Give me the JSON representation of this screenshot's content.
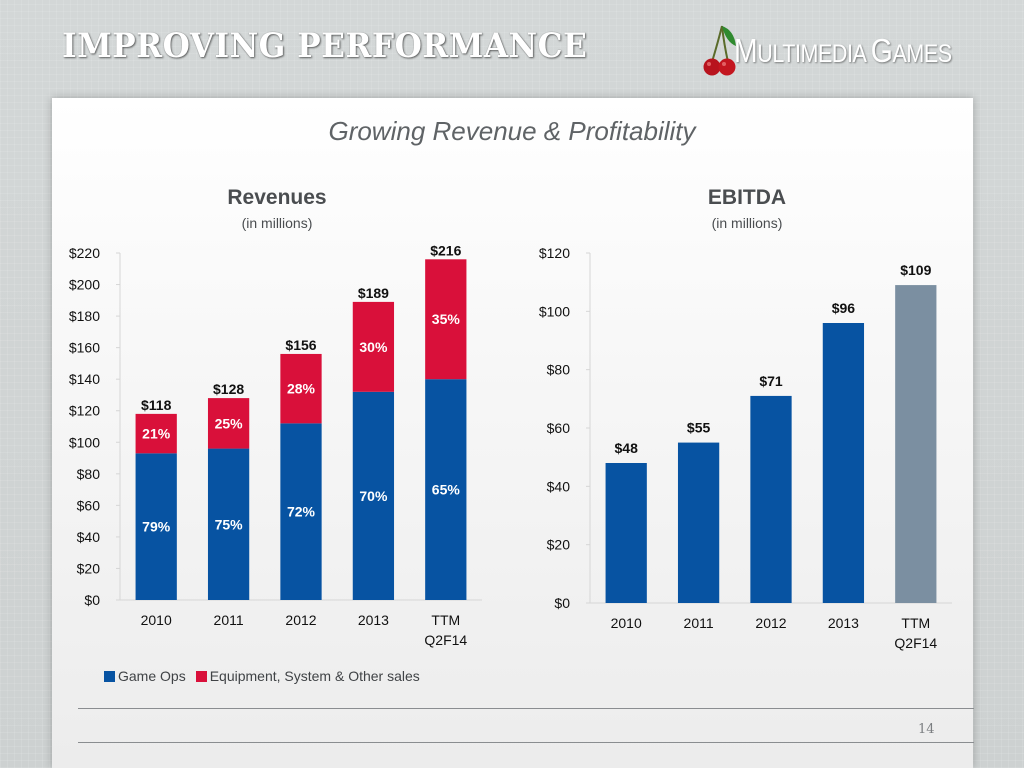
{
  "slide": {
    "title": "IMPROVING PERFORMANCE",
    "logo_text_big_m": "M",
    "logo_text_rest": "ULTIMEDIA ",
    "logo_text_big_g": "G",
    "logo_text_rest2": "AMES",
    "subtitle": "Growing Revenue & Profitability",
    "page_number": "14",
    "colors": {
      "game_ops": "#0753a2",
      "equipment": "#d9103a",
      "ttm_ebitda": "#7b8fa1"
    }
  },
  "chart_data": [
    {
      "type": "bar",
      "stacked": true,
      "title": "Revenues",
      "subtitle": "(in millions)",
      "categories": [
        "2010",
        "2011",
        "2012",
        "2013",
        "TTM\nQ2F14"
      ],
      "series": [
        {
          "name": "Game Ops",
          "values": [
            93,
            96,
            112,
            132,
            140
          ],
          "percent_labels": [
            "79%",
            "75%",
            "72%",
            "70%",
            "65%"
          ]
        },
        {
          "name": "Equipment, System & Other sales",
          "values": [
            25,
            32,
            44,
            57,
            76
          ],
          "percent_labels": [
            "21%",
            "25%",
            "28%",
            "30%",
            "35%"
          ]
        }
      ],
      "totals": [
        118,
        128,
        156,
        189,
        216
      ],
      "total_labels": [
        "$118",
        "$128",
        "$156",
        "$189",
        "$216"
      ],
      "ylim": [
        0,
        220
      ],
      "yticks": [
        0,
        20,
        40,
        60,
        80,
        100,
        120,
        140,
        160,
        180,
        200,
        220
      ],
      "ytick_labels": [
        "$0",
        "$20",
        "$40",
        "$60",
        "$80",
        "$100",
        "$120",
        "$140",
        "$160",
        "$180",
        "$200",
        "$220"
      ],
      "xlabel": "",
      "ylabel": "",
      "grid": false,
      "legend": [
        "Game Ops",
        "Equipment, System & Other sales"
      ],
      "legend_placement": "bottom"
    },
    {
      "type": "bar",
      "title": "EBITDA",
      "subtitle": "(in millions)",
      "categories": [
        "2010",
        "2011",
        "2012",
        "2013",
        "TTM\nQ2F14"
      ],
      "values": [
        48,
        55,
        71,
        96,
        109
      ],
      "value_labels": [
        "$48",
        "$55",
        "$71",
        "$96",
        "$109"
      ],
      "ylim": [
        0,
        120
      ],
      "yticks": [
        0,
        20,
        40,
        60,
        80,
        100,
        120
      ],
      "ytick_labels": [
        "$0",
        "$20",
        "$40",
        "$60",
        "$80",
        "$100",
        "$120"
      ],
      "xlabel": "",
      "ylabel": "",
      "grid": false,
      "legend": null
    }
  ]
}
